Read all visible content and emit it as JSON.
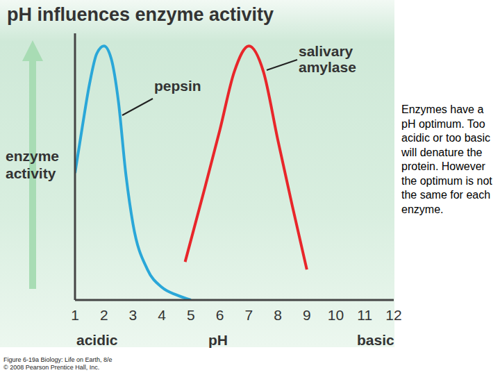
{
  "chart_data": {
    "type": "line",
    "title": "pH influences enzyme activity",
    "xlabel": "pH",
    "xlabel_left": "acidic",
    "xlabel_right": "basic",
    "ylabel": "enzyme activity",
    "xlim": [
      1,
      12
    ],
    "xticks": [
      1,
      2,
      3,
      4,
      5,
      6,
      7,
      8,
      9,
      10,
      11,
      12
    ],
    "ylim": [
      0,
      105
    ],
    "yticks": [],
    "tick_labels": "x",
    "grid": false,
    "series": [
      {
        "name": "pepsin",
        "color": "#2aa7d8",
        "x": [
          1,
          1.25,
          1.5,
          1.75,
          2,
          2.25,
          2.5,
          2.75,
          3,
          3.5,
          4,
          4.5,
          5
        ],
        "values": [
          50,
          68,
          85,
          97,
          100,
          95,
          78,
          50,
          30,
          12,
          5,
          2,
          0
        ]
      },
      {
        "name": "salivary amylase",
        "color": "#e8262a",
        "x": [
          4.8,
          5.5,
          6,
          6.5,
          7,
          7.5,
          8,
          8.5,
          9
        ],
        "values": [
          15,
          45,
          67,
          90,
          100,
          90,
          63,
          37,
          12
        ]
      }
    ],
    "note": "Enzymes have a pH optimum. Too acidic or too basic will denature the protein. However the optimum is not the same for each enzyme.",
    "caption": [
      "Figure 6-19a Biology: Life on Earth, 8/e",
      "© 2008 Pearson Prentice Hall, Inc."
    ]
  }
}
